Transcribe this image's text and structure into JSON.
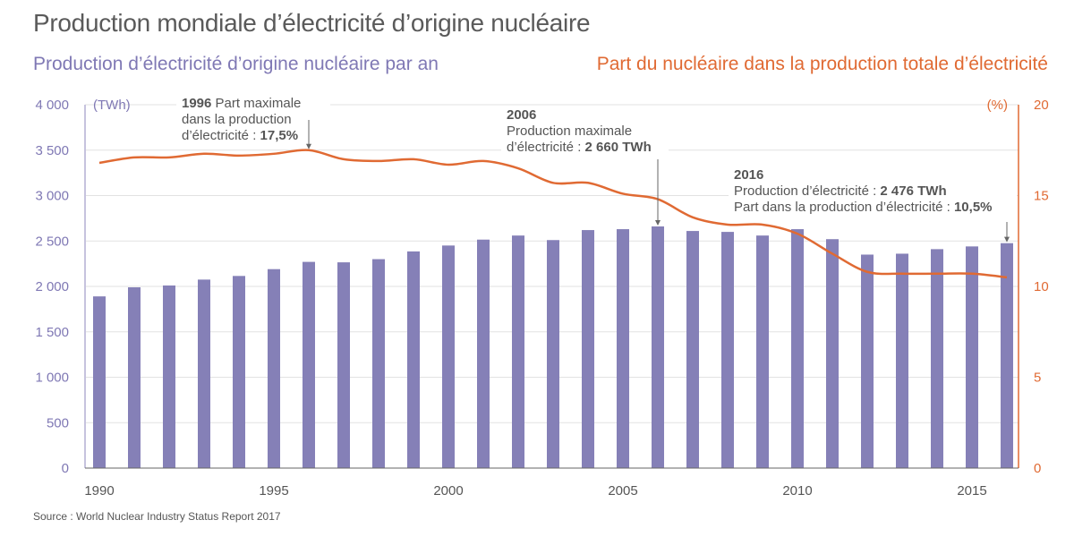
{
  "header": {
    "title": "Production mondiale d’électricité d’origine nucléaire",
    "subtitle_left": "Production d’électricité d’origine nucléaire par an",
    "subtitle_right": "Part du nucléaire dans la production totale d’électricité"
  },
  "footer": {
    "source": "Source : World Nuclear Industry Status Report 2017"
  },
  "colors": {
    "bars": "#8580b7",
    "line": "#e06a33",
    "left_axis": "#7f78b4",
    "right_axis": "#e06a33",
    "grid": "#e2e2e2",
    "annotation": "#555555"
  },
  "chart_data": {
    "type": "bar+line",
    "title": "Production mondiale d’électricité d’origine nucléaire",
    "x": [
      1990,
      1991,
      1992,
      1993,
      1994,
      1995,
      1996,
      1997,
      1998,
      1999,
      2000,
      2001,
      2002,
      2003,
      2004,
      2005,
      2006,
      2007,
      2008,
      2009,
      2010,
      2011,
      2012,
      2013,
      2014,
      2015,
      2016
    ],
    "x_tick_labels": [
      "1990",
      "1995",
      "2000",
      "2005",
      "2010",
      "2015"
    ],
    "x_ticks": [
      1990,
      1995,
      2000,
      2005,
      2010,
      2015
    ],
    "series": [
      {
        "name": "Production d’électricité d’origine nucléaire par an",
        "type": "bar",
        "axis": "left",
        "unit": "TWh",
        "values": [
          1890,
          1990,
          2010,
          2075,
          2115,
          2190,
          2270,
          2265,
          2300,
          2385,
          2450,
          2515,
          2560,
          2510,
          2620,
          2630,
          2660,
          2610,
          2600,
          2560,
          2630,
          2520,
          2350,
          2360,
          2410,
          2440,
          2476
        ]
      },
      {
        "name": "Part du nucléaire dans la production totale d’électricité",
        "type": "line",
        "axis": "right",
        "unit": "%",
        "values": [
          16.8,
          17.1,
          17.1,
          17.3,
          17.2,
          17.3,
          17.5,
          17.0,
          16.9,
          17.0,
          16.7,
          16.9,
          16.5,
          15.7,
          15.7,
          15.1,
          14.8,
          13.8,
          13.4,
          13.4,
          12.9,
          11.8,
          10.8,
          10.7,
          10.7,
          10.7,
          10.5
        ]
      }
    ],
    "left_axis": {
      "label": "(TWh)",
      "range": [
        0,
        4000
      ],
      "ticks": [
        0,
        500,
        1000,
        1500,
        2000,
        2500,
        3000,
        3500,
        4000
      ],
      "tick_labels": [
        "0",
        "500",
        "1 000",
        "1 500",
        "2 000",
        "2 500",
        "3 000",
        "3 500",
        "4 000"
      ]
    },
    "right_axis": {
      "label": "(%)",
      "range": [
        0,
        20
      ],
      "ticks": [
        0,
        5,
        10,
        15,
        20
      ],
      "tick_labels": [
        "0",
        "5",
        "10",
        "15",
        "20"
      ]
    },
    "grid": true,
    "annotations": [
      {
        "target_year": 1996,
        "target_series": "line",
        "target_value": 17.5,
        "lines": [
          [
            {
              "t": "1996",
              "b": true
            },
            {
              "t": " Part maximale",
              "b": false
            }
          ],
          [
            {
              "t": "dans la production",
              "b": false
            }
          ],
          [
            {
              "t": "d’électricité : ",
              "b": false
            },
            {
              "t": "17,5%",
              "b": true
            }
          ]
        ]
      },
      {
        "target_year": 2006,
        "target_series": "bar",
        "target_value": 2660,
        "lines": [
          [
            {
              "t": "2006",
              "b": true
            }
          ],
          [
            {
              "t": "Production maximale",
              "b": false
            }
          ],
          [
            {
              "t": "d’électricité : ",
              "b": false
            },
            {
              "t": "2 660 TWh",
              "b": true
            }
          ]
        ]
      },
      {
        "target_year": 2016,
        "target_series": "bar",
        "target_value": 2476,
        "lines": [
          [
            {
              "t": "2016",
              "b": true
            }
          ],
          [
            {
              "t": "Production d’électricité : ",
              "b": false
            },
            {
              "t": "2 476 TWh",
              "b": true
            }
          ],
          [
            {
              "t": "Part dans la production d’électricité : ",
              "b": false
            },
            {
              "t": "10,5%",
              "b": true
            }
          ]
        ]
      }
    ]
  }
}
